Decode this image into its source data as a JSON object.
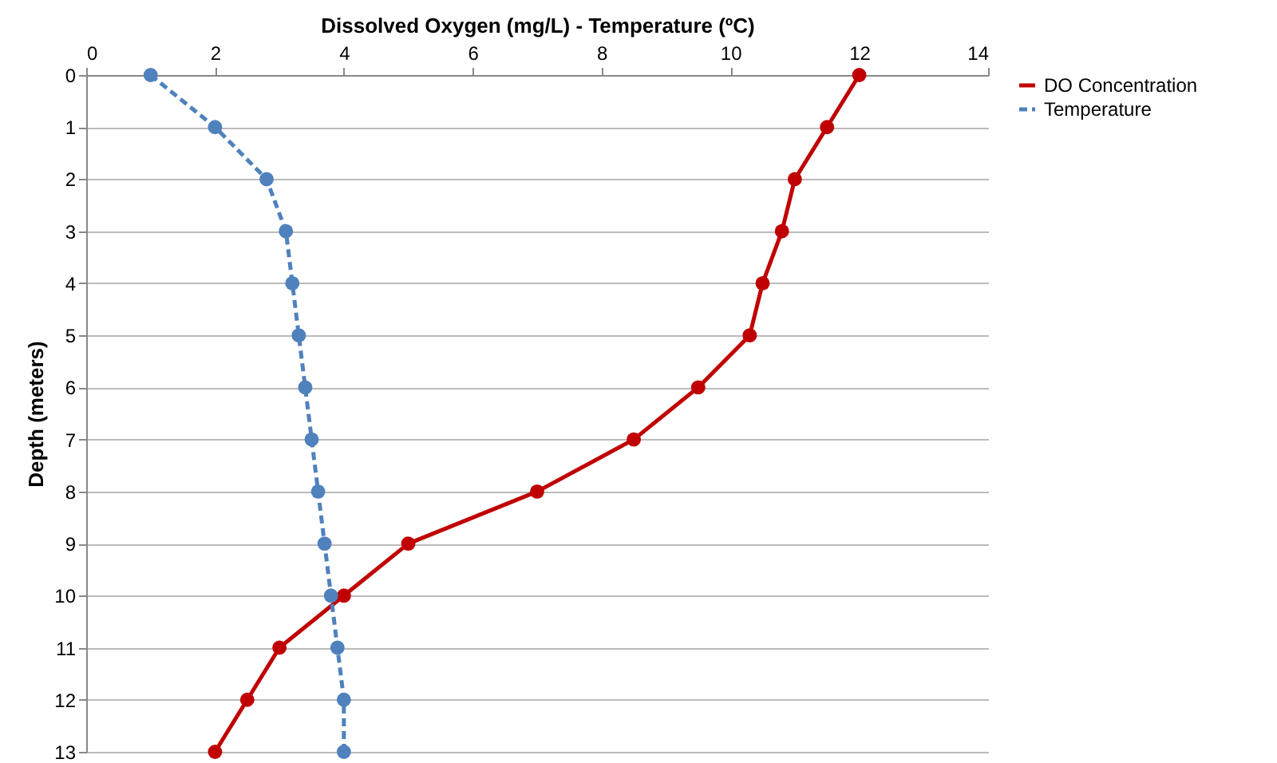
{
  "chart_data": {
    "type": "line",
    "xlabel": "Dissolved Oxygen (mg/L) - Temperature (ºC)",
    "ylabel": "Depth (meters)",
    "xlim": [
      0,
      14
    ],
    "xticks": [
      0,
      2,
      4,
      6,
      8,
      10,
      12,
      14
    ],
    "ylim": [
      13,
      0
    ],
    "yticks": [
      0,
      1,
      2,
      3,
      4,
      5,
      6,
      7,
      8,
      9,
      10,
      11,
      12,
      13
    ],
    "grid": "y",
    "legend": "right",
    "marker": "circle",
    "series": [
      {
        "name": "DO Concentration",
        "color": "#c00000",
        "line_style": "solid",
        "x": [
          12,
          11.5,
          11,
          10.8,
          10.5,
          10.3,
          9.5,
          8.5,
          7,
          5,
          4,
          3,
          2.5,
          2
        ],
        "values": [
          0,
          1,
          2,
          3,
          4,
          5,
          6,
          7,
          8,
          9,
          10,
          11,
          12,
          13
        ]
      },
      {
        "name": "Temperature",
        "color": "#4f81bd",
        "line_style": "dashed",
        "x": [
          1,
          2,
          2.8,
          3.1,
          3.2,
          3.3,
          3.4,
          3.5,
          3.6,
          3.7,
          3.8,
          3.9,
          4,
          4
        ],
        "values": [
          0,
          1,
          2,
          3,
          4,
          5,
          6,
          7,
          8,
          9,
          10,
          11,
          12,
          13
        ]
      }
    ]
  }
}
